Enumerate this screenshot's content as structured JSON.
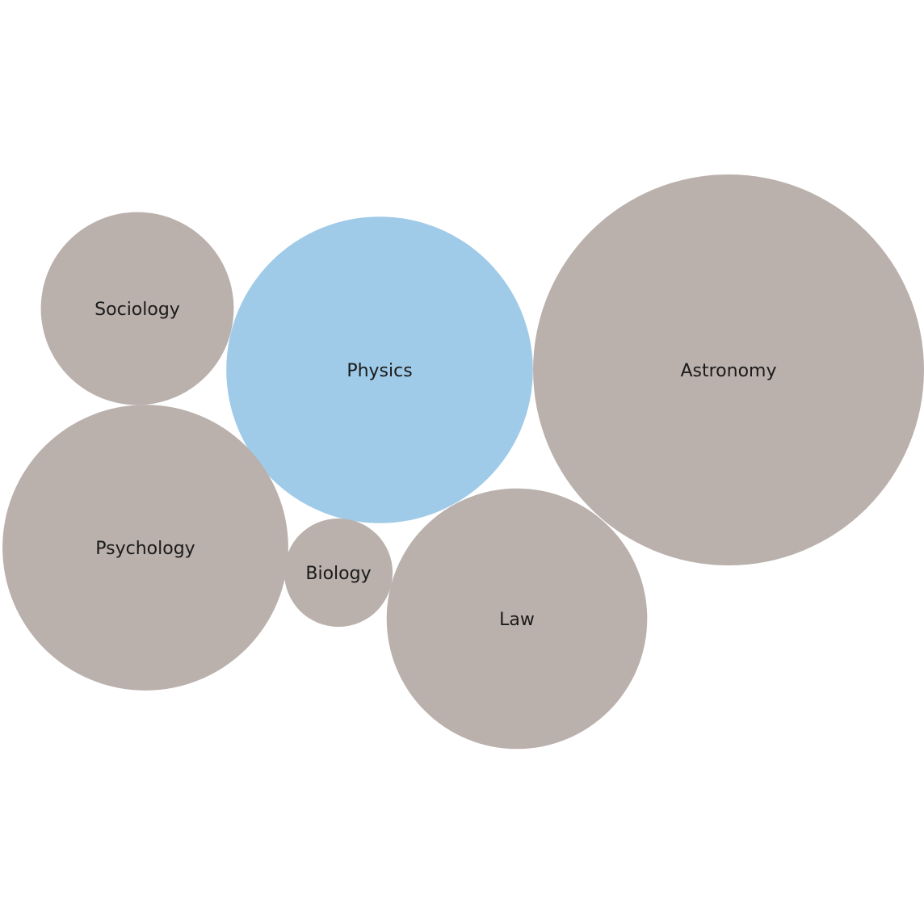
{
  "chart_data": {
    "type": "bubble",
    "title": "",
    "legend": "none",
    "colors": {
      "default": "#BAB0AC",
      "highlight": "#A0CBE8"
    },
    "bubbles": [
      {
        "label": "Astronomy",
        "value": 234,
        "highlighted": false
      },
      {
        "label": "Physics",
        "value": 144,
        "highlighted": true
      },
      {
        "label": "Psychology",
        "value": 125,
        "highlighted": false
      },
      {
        "label": "Law",
        "value": 104,
        "highlighted": false
      },
      {
        "label": "Sociology",
        "value": 57,
        "highlighted": false
      },
      {
        "label": "Biology",
        "value": 18,
        "highlighted": false
      }
    ]
  }
}
